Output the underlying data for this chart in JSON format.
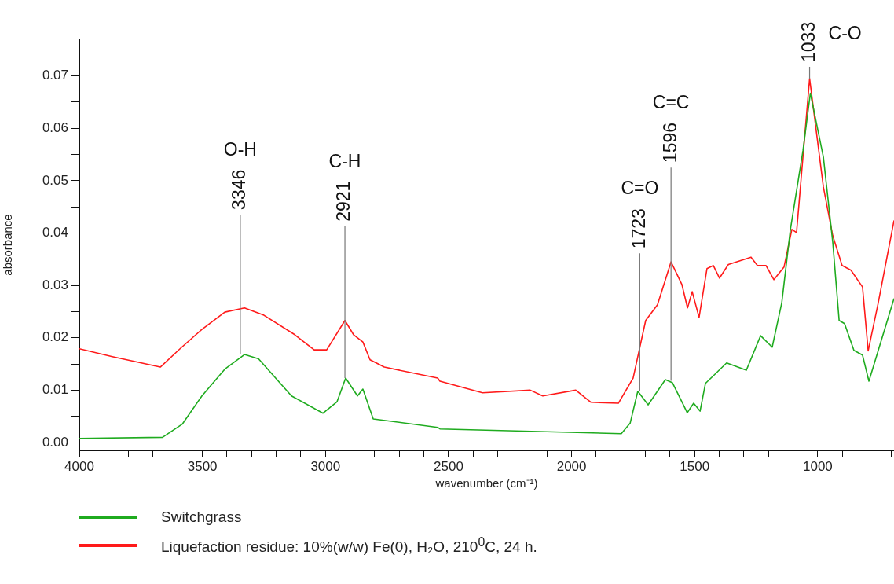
{
  "chart_data": {
    "type": "line",
    "xlabel": "wavenumber (cm⁻¹)",
    "ylabel": "absorbance",
    "xlim": [
      4000,
      690
    ],
    "ylim": [
      -0.0015,
      0.077
    ],
    "xticks": [
      4000,
      {
        "value": 3900,
        "label": null
      },
      {
        "value": 3800,
        "label": null
      },
      {
        "value": 3700,
        "label": null
      },
      {
        "value": 3600,
        "label": null
      },
      3500,
      {
        "value": 3400,
        "label": null
      },
      {
        "value": 3300,
        "label": null
      },
      {
        "value": 3200,
        "label": null
      },
      {
        "value": 3100,
        "label": null
      },
      3000,
      {
        "value": 2900,
        "label": null
      },
      {
        "value": 2800,
        "label": null
      },
      {
        "value": 2700,
        "label": null
      },
      {
        "value": 2600,
        "label": null
      },
      2500,
      {
        "value": 2400,
        "label": null
      },
      {
        "value": 2300,
        "label": null
      },
      {
        "value": 2200,
        "label": null
      },
      {
        "value": 2100,
        "label": null
      },
      2000,
      {
        "value": 1900,
        "label": null
      },
      {
        "value": 1800,
        "label": null
      },
      {
        "value": 1700,
        "label": null
      },
      {
        "value": 1600,
        "label": null
      },
      1500,
      {
        "value": 1400,
        "label": null
      },
      {
        "value": 1300,
        "label": null
      },
      {
        "value": 1200,
        "label": null
      },
      {
        "value": 1100,
        "label": null
      },
      1000,
      {
        "value": 900,
        "label": null
      },
      {
        "value": 800,
        "label": null
      },
      {
        "value": 700,
        "label": null
      }
    ],
    "yticks": [
      {
        "value": 0,
        "label": "0.00"
      },
      {
        "value": 0.005,
        "label": null
      },
      {
        "value": 0.01,
        "label": "0.01"
      },
      {
        "value": 0.015,
        "label": null
      },
      {
        "value": 0.02,
        "label": "0.02"
      },
      {
        "value": 0.025,
        "label": null
      },
      {
        "value": 0.03,
        "label": "0.03"
      },
      {
        "value": 0.035,
        "label": null
      },
      {
        "value": 0.04,
        "label": "0.04"
      },
      {
        "value": 0.045,
        "label": null
      },
      {
        "value": 0.05,
        "label": "0.05"
      },
      {
        "value": 0.055,
        "label": null
      },
      {
        "value": 0.06,
        "label": "0.06"
      },
      {
        "value": 0.065,
        "label": null
      },
      {
        "value": 0.07,
        "label": "0.07"
      },
      {
        "value": 0.075,
        "label": null
      }
    ],
    "grid": false,
    "legend": "bottom left",
    "marker": "none",
    "line_style": "solid",
    "series": [
      {
        "name": "Switchgrass",
        "color": "#1fab1f",
        "x": [
          4000,
          3662,
          3582,
          3502,
          3409,
          3329,
          3272,
          3138,
          3010,
          2953,
          2918,
          2870,
          2848,
          2806,
          2544,
          2535,
          1798,
          1762,
          1731,
          1689,
          1619,
          1590,
          1530,
          1504,
          1478,
          1456,
          1370,
          1290,
          1232,
          1185,
          1146,
          1111,
          1060,
          1030,
          977,
          939,
          913,
          891,
          853,
          818,
          792,
          690
        ],
        "values": [
          0.0008,
          0.001,
          0.0035,
          0.0089,
          0.014,
          0.0168,
          0.016,
          0.0089,
          0.0056,
          0.0078,
          0.0123,
          0.0089,
          0.0102,
          0.0045,
          0.0029,
          0.0026,
          0.0017,
          0.0037,
          0.0098,
          0.0072,
          0.012,
          0.0114,
          0.0057,
          0.0075,
          0.006,
          0.0113,
          0.0152,
          0.0138,
          0.0204,
          0.0182,
          0.0267,
          0.0407,
          0.0557,
          0.0667,
          0.0545,
          0.0383,
          0.0233,
          0.0227,
          0.0176,
          0.0167,
          0.0117,
          0.0275
        ]
      },
      {
        "name": "Liquefaction residue: 10%(w/w) Fe(0), H₂O, 210$^{0}$C, 24 h.",
        "color": "#ff1a1a",
        "x": [
          4000,
          3866,
          3671,
          3591,
          3502,
          3409,
          3329,
          3250,
          3125,
          3046,
          2995,
          2921,
          2886,
          2848,
          2819,
          2761,
          2544,
          2535,
          2362,
          2168,
          2117,
          1983,
          1922,
          1810,
          1750,
          1699,
          1651,
          1596,
          1552,
          1529,
          1510,
          1482,
          1450,
          1424,
          1399,
          1363,
          1271,
          1245,
          1210,
          1178,
          1137,
          1105,
          1086,
          1033,
          977,
          939,
          901,
          865,
          818,
          795,
          754,
          690
        ],
        "values": [
          0.0179,
          0.0164,
          0.0144,
          0.0179,
          0.0216,
          0.0249,
          0.0257,
          0.0243,
          0.0206,
          0.0177,
          0.0177,
          0.0233,
          0.0206,
          0.0192,
          0.0158,
          0.0144,
          0.0123,
          0.0117,
          0.0095,
          0.01,
          0.0089,
          0.01,
          0.0077,
          0.0075,
          0.0123,
          0.0233,
          0.0263,
          0.0345,
          0.0302,
          0.0257,
          0.0288,
          0.0239,
          0.0332,
          0.0338,
          0.0314,
          0.034,
          0.0354,
          0.0338,
          0.0338,
          0.0311,
          0.0335,
          0.0407,
          0.0401,
          0.0695,
          0.0488,
          0.0395,
          0.0338,
          0.0329,
          0.0297,
          0.0175,
          0.0267,
          0.0424
        ]
      }
    ],
    "annotations": [
      "O-H",
      {
        "text": "3346",
        "x": 3346,
        "y": 0.0168
      },
      "C-H",
      {
        "text": "2921",
        "x": 2921,
        "y": 0.0123
      },
      "C=O",
      {
        "text": "1723",
        "x": 1723,
        "y": 0.0098
      },
      "C=C",
      {
        "text": "1596",
        "x": 1596,
        "y": 0.0118
      },
      {
        "text": "1033",
        "x": 1033,
        "y": 0.0695
      },
      "C-O"
    ]
  }
}
